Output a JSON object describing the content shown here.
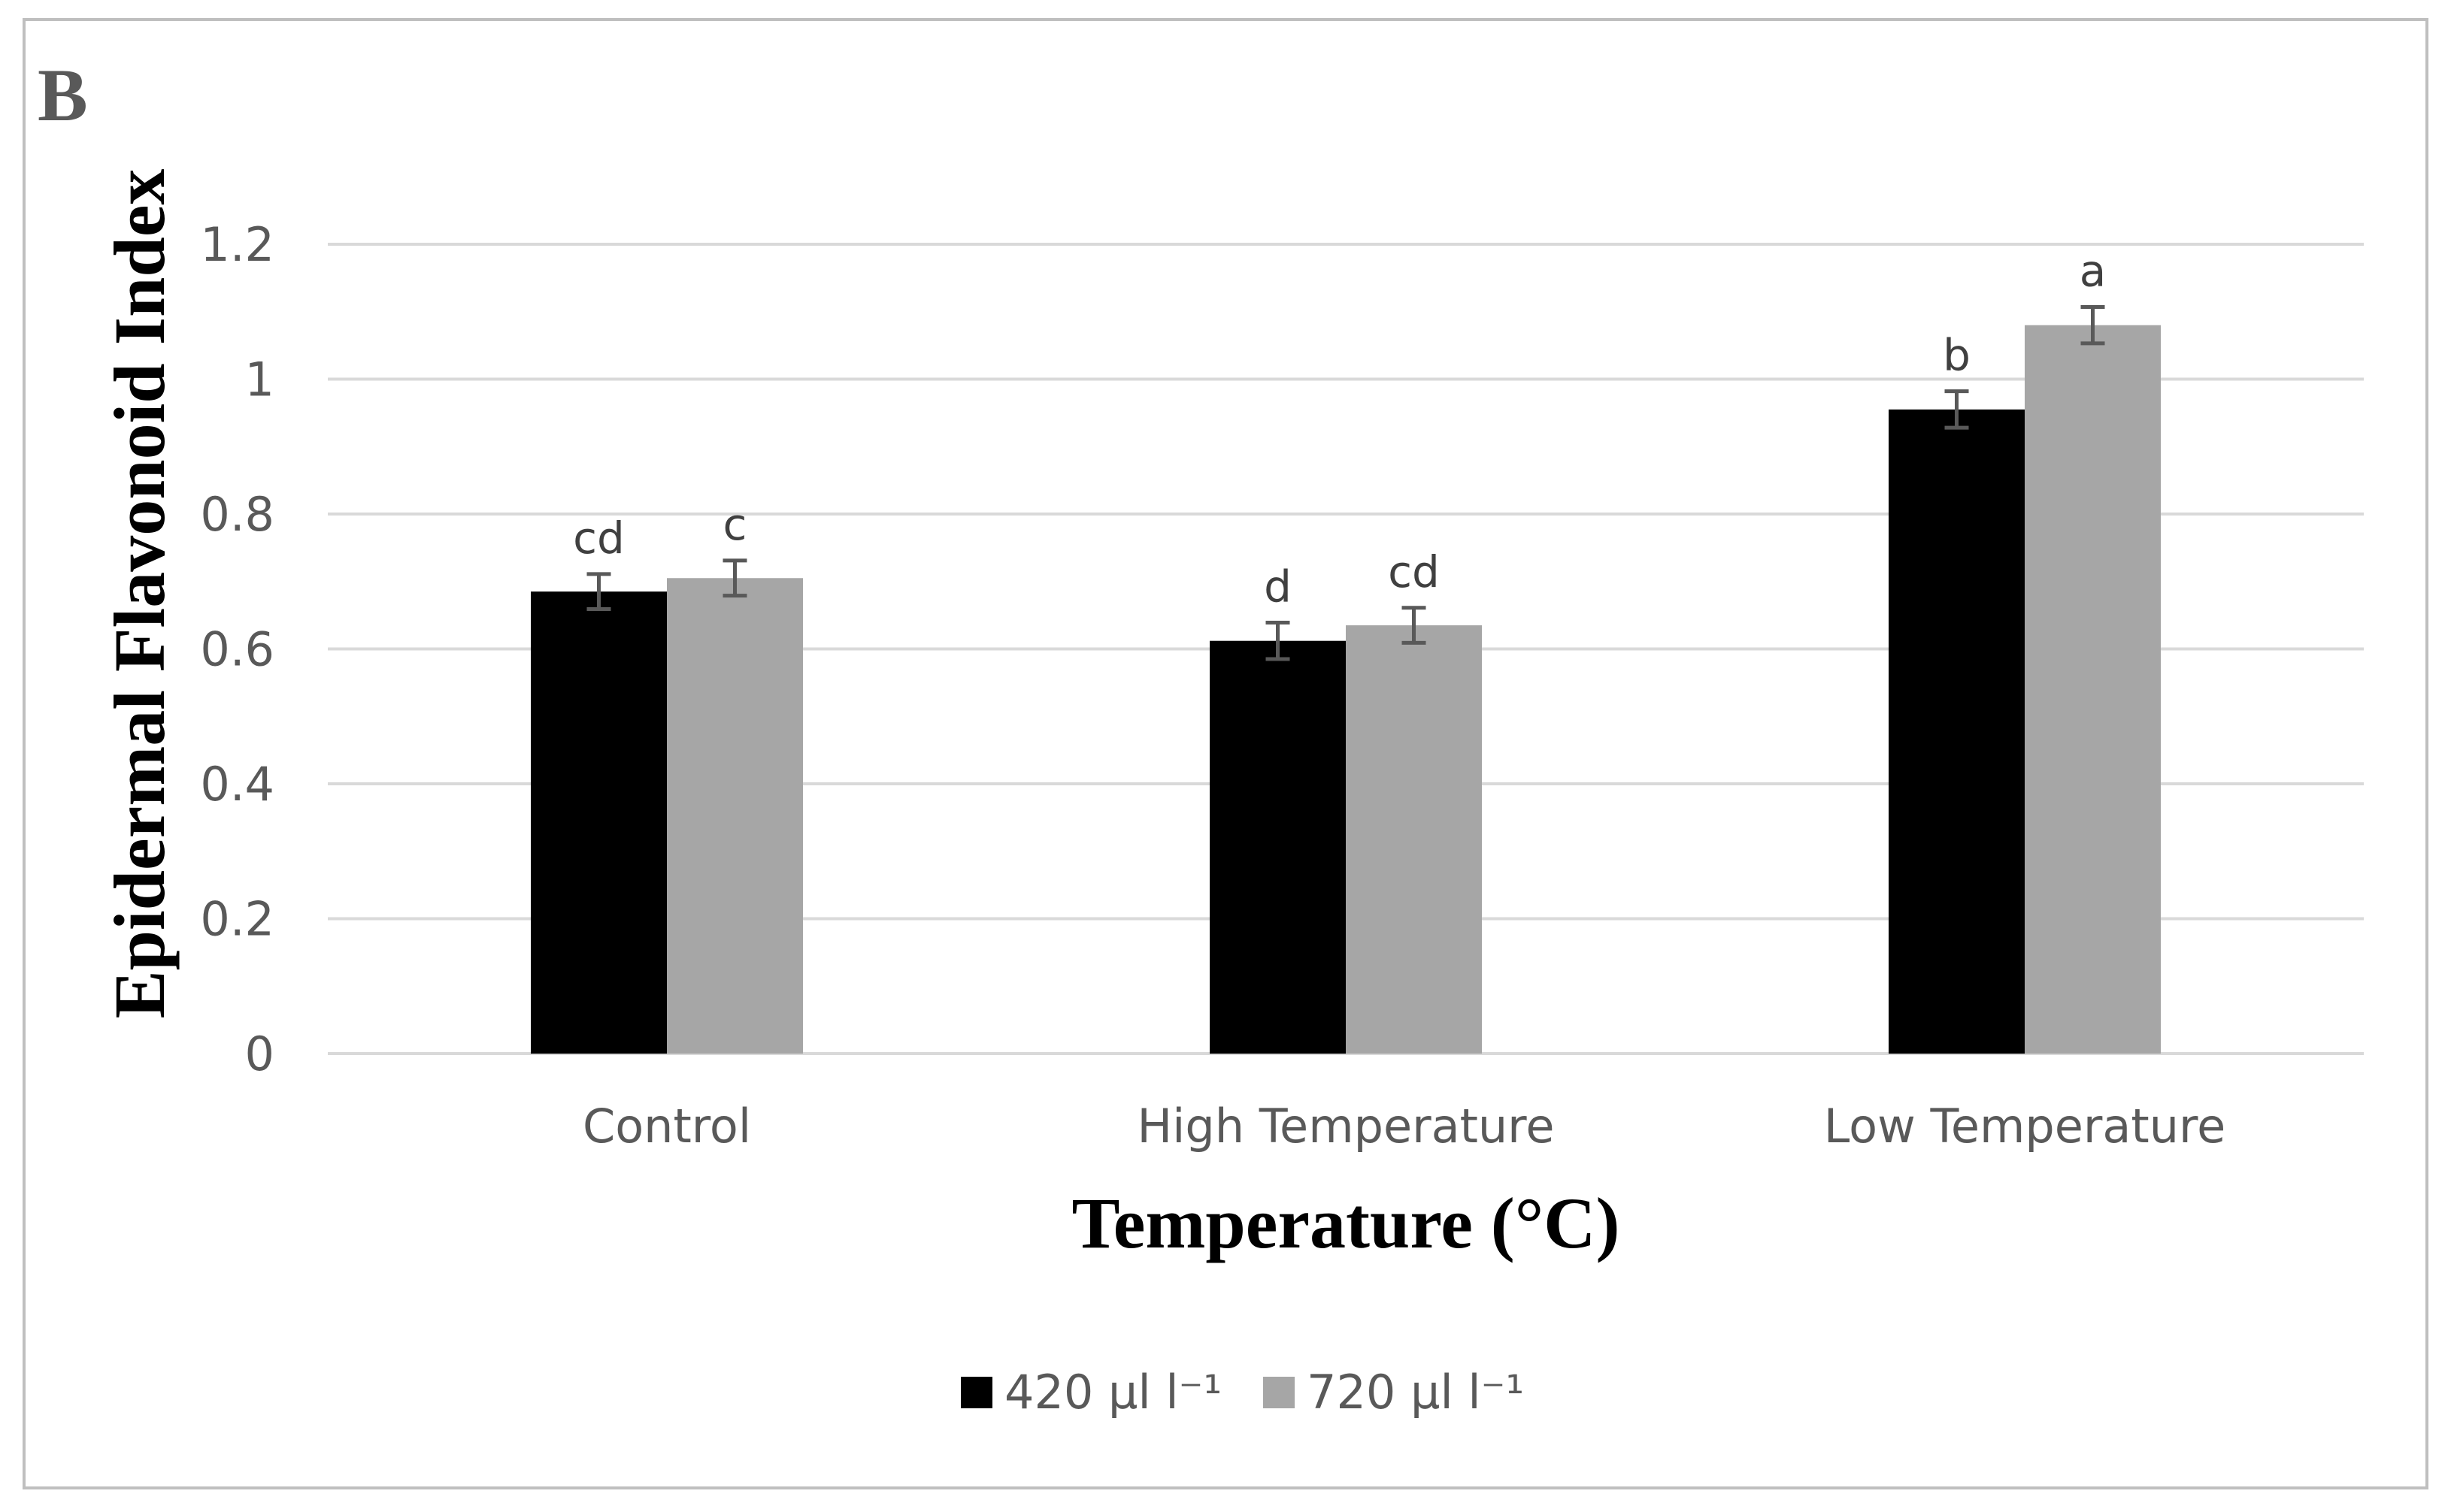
{
  "panel_label": "B",
  "chart_data": {
    "type": "bar",
    "title": "",
    "xlabel": "Temperature (°C)",
    "ylabel": "Epidermal Flavonoid Index",
    "categories": [
      "Control",
      "High Temperature",
      "Low Temperature"
    ],
    "series": [
      {
        "name": "420 µl l⁻¹",
        "color": "#000000",
        "values": [
          0.685,
          0.612,
          0.955
        ],
        "errors": [
          0.026,
          0.027,
          0.027
        ],
        "letters": [
          "cd",
          "d",
          "b"
        ]
      },
      {
        "name": "720 µl l⁻¹",
        "color": "#a6a6a6",
        "values": [
          0.705,
          0.635,
          1.08
        ],
        "errors": [
          0.026,
          0.026,
          0.027
        ],
        "letters": [
          "c",
          "cd",
          "a"
        ]
      }
    ],
    "ylim": [
      0,
      1.2
    ],
    "yticks": [
      0,
      0.2,
      0.4,
      0.6,
      0.8,
      1,
      1.2
    ],
    "ytick_labels": [
      "0",
      "0.2",
      "0.4",
      "0.6",
      "0.8",
      "1",
      "1.2"
    ],
    "grid": true,
    "legend_position": "bottom-center",
    "gridline_color": "#d9d9d9",
    "errorbar_color": "#595959"
  }
}
